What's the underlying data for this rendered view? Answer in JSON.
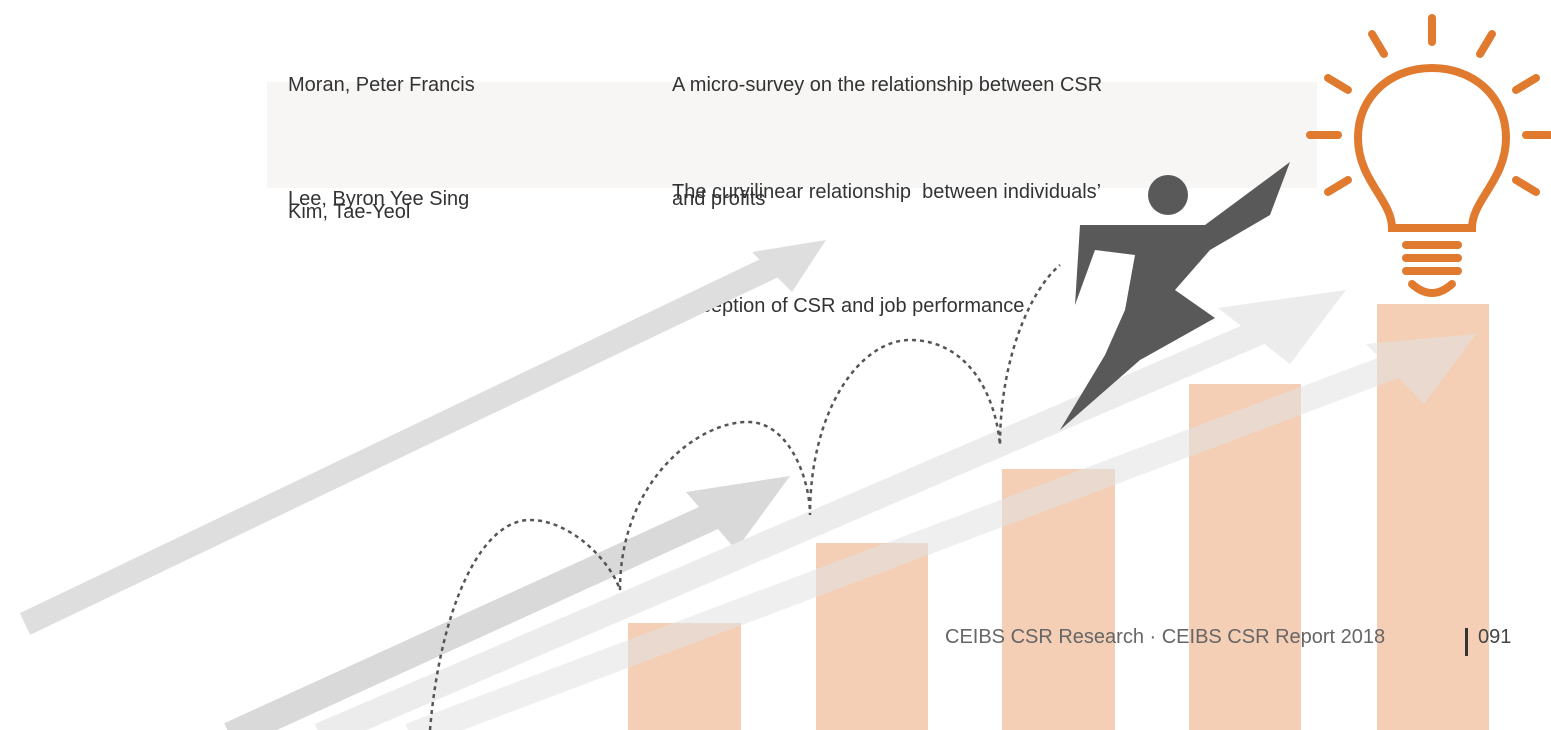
{
  "table": {
    "rows": [
      {
        "authors": [
          "Moran, Peter Francis",
          "Lee, Byron Yee Sing"
        ],
        "title": [
          "A micro-survey on the relationship between CSR",
          "and profits"
        ]
      },
      {
        "authors": [
          "Kim, Tae-Yeol"
        ],
        "title": [
          "The curvilinear relationship  between individuals’",
          "perception of CSR and job performance"
        ]
      }
    ]
  },
  "footer": {
    "text": "CEIBS CSR Research · CEIBS CSR Report 2018",
    "page": "091"
  }
}
